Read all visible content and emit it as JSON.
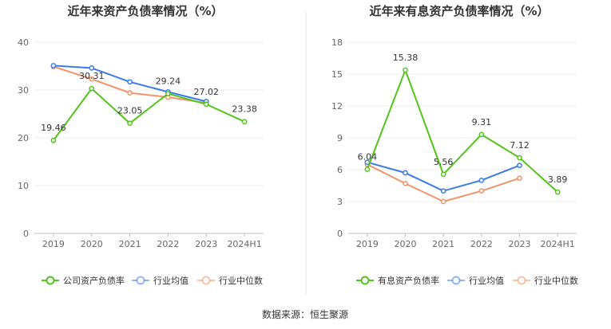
{
  "chart_data": [
    {
      "type": "line",
      "title": "近年来资产负债率情况（%）",
      "categories": [
        "2019",
        "2020",
        "2021",
        "2022",
        "2023",
        "2024H1"
      ],
      "ylim": [
        0,
        40
      ],
      "yticks": [
        0,
        10,
        20,
        30,
        40
      ],
      "series": [
        {
          "name": "公司资产负债率",
          "color": "#52c41a",
          "values": [
            19.46,
            30.31,
            23.05,
            29.24,
            27.02,
            23.38
          ],
          "labels": true
        },
        {
          "name": "行业均值",
          "color": "#3b7be8",
          "values": [
            35.1,
            34.6,
            31.7,
            29.6,
            27.6,
            null
          ],
          "labels": false
        },
        {
          "name": "行业中位数",
          "color": "#f0926a",
          "values": [
            34.9,
            32.3,
            29.4,
            28.5,
            27.3,
            null
          ],
          "labels": false
        }
      ],
      "legend_position": "bottom",
      "grid": true
    },
    {
      "type": "line",
      "title": "近年来有息资产负债率情况（%）",
      "categories": [
        "2019",
        "2020",
        "2021",
        "2022",
        "2023",
        "2024H1"
      ],
      "ylim": [
        0,
        18
      ],
      "yticks": [
        0,
        3,
        6,
        9,
        12,
        15,
        18
      ],
      "series": [
        {
          "name": "有息资产负债率",
          "color": "#52c41a",
          "values": [
            6.04,
            15.38,
            5.56,
            9.31,
            7.12,
            3.89
          ],
          "labels": true
        },
        {
          "name": "行业均值",
          "color": "#3b7be8",
          "values": [
            6.7,
            5.7,
            4.0,
            5.0,
            6.4,
            null
          ],
          "labels": false
        },
        {
          "name": "行业中位数",
          "color": "#f0926a",
          "values": [
            6.5,
            4.7,
            3.0,
            4.0,
            5.2,
            null
          ],
          "labels": false
        }
      ],
      "legend_position": "bottom",
      "grid": true
    }
  ],
  "footer": {
    "source": "数据来源：恒生聚源"
  }
}
